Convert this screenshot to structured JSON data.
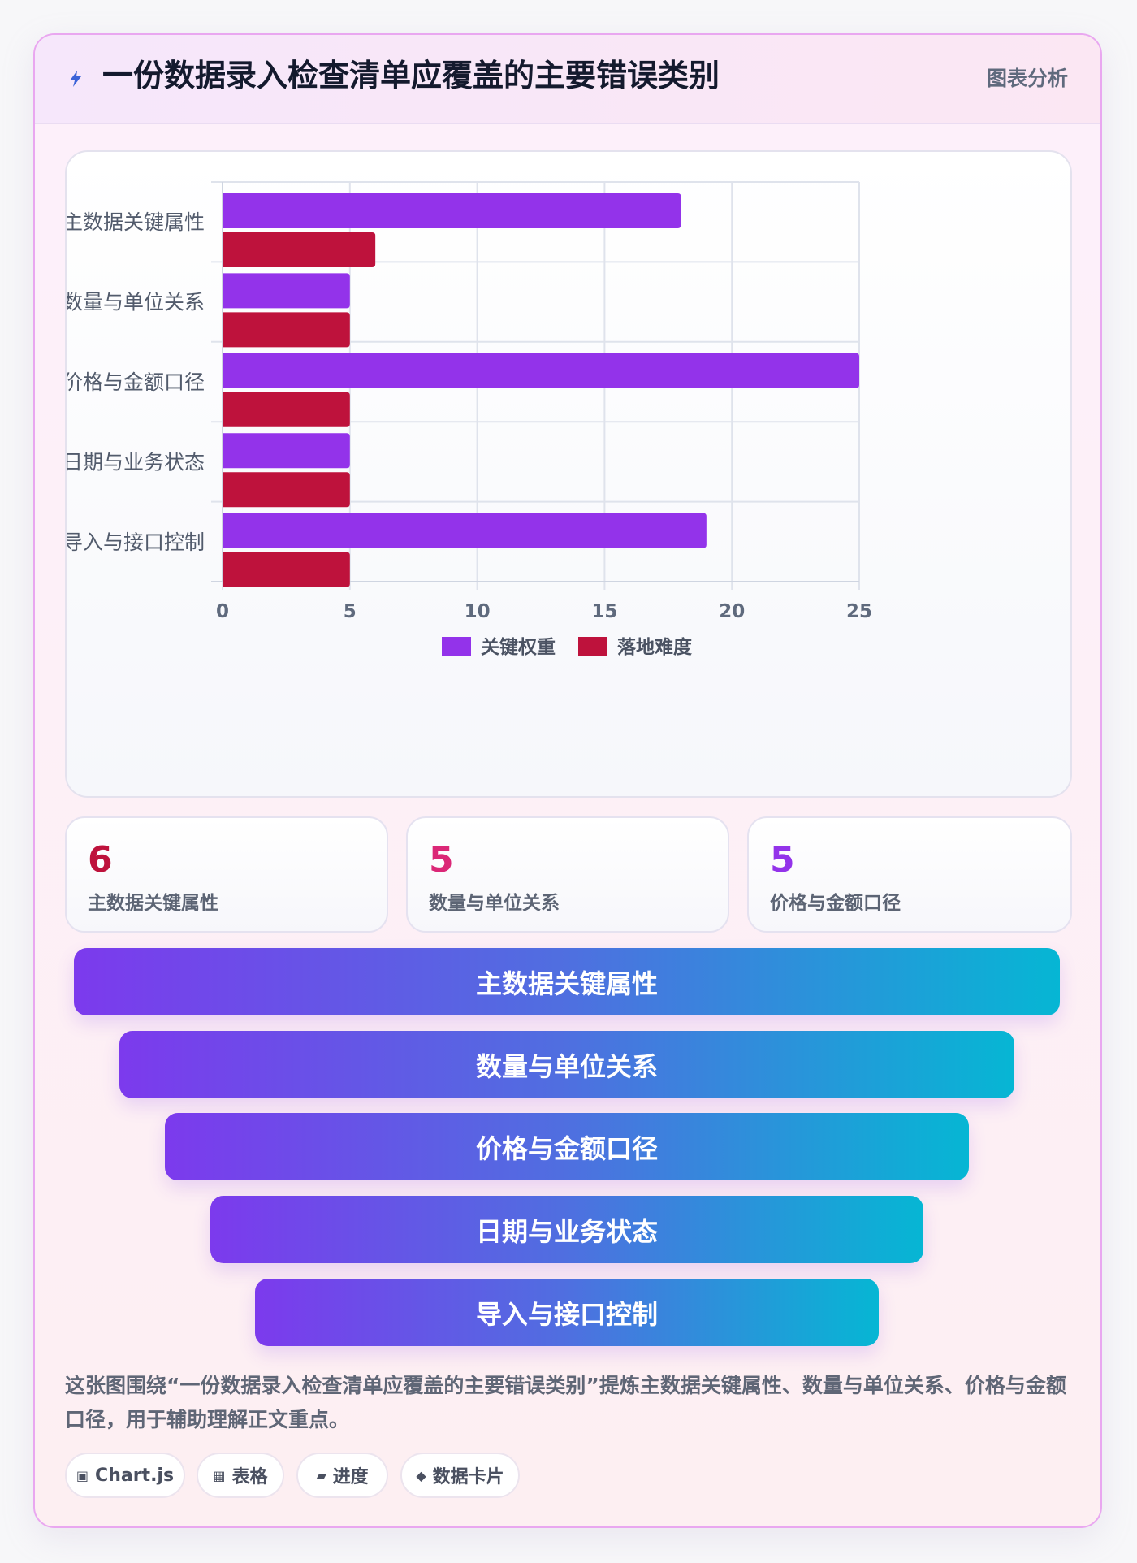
{
  "header": {
    "icon": "lightning-icon",
    "title": "一份数据录入检查清单应覆盖的主要错误类别",
    "tag": "图表分析"
  },
  "chart_data": {
    "type": "bar",
    "orientation": "horizontal",
    "categories": [
      "主数据关键属性",
      "数量与单位关系",
      "价格与金额口径",
      "日期与业务状态",
      "导入与接口控制"
    ],
    "series": [
      {
        "name": "关键权重",
        "color": "#9333ea",
        "values": [
          18,
          5,
          25,
          5,
          19
        ]
      },
      {
        "name": "落地难度",
        "color": "#be123c",
        "values": [
          6,
          5,
          5,
          5,
          5
        ]
      }
    ],
    "xlim": [
      0,
      25
    ],
    "xticks": [
      0,
      5,
      10,
      15,
      20,
      25
    ],
    "grid": true,
    "legend": "bottom"
  },
  "stats": [
    {
      "value": "6",
      "label": "主数据关键属性",
      "color": "#be123c"
    },
    {
      "value": "5",
      "label": "数量与单位关系",
      "color": "#db2777"
    },
    {
      "value": "5",
      "label": "价格与金额口径",
      "color": "#9333ea"
    }
  ],
  "funnel": [
    "主数据关键属性",
    "数量与单位关系",
    "价格与金额口径",
    "日期与业务状态",
    "导入与接口控制"
  ],
  "description": "这张图围绕“一份数据录入检查清单应覆盖的主要错误类别”提炼主数据关键属性、数量与单位关系、价格与金额口径，用于辅助理解正文重点。",
  "chips": [
    {
      "icon": "▣",
      "label": "Chart.js"
    },
    {
      "icon": "▦",
      "label": "表格"
    },
    {
      "icon": "▰",
      "label": "进度"
    },
    {
      "icon": "◆",
      "label": "数据卡片"
    }
  ]
}
